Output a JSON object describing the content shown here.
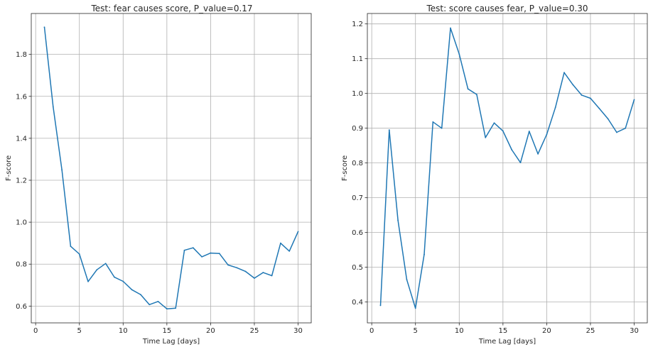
{
  "chart_data": [
    {
      "type": "line",
      "title": "Test: fear causes score, P_value=0.17",
      "xlabel": "Time Lag [days]",
      "ylabel": "F-score",
      "xlim": [
        -0.5,
        31.5
      ],
      "ylim": [
        0.52,
        1.995
      ],
      "xticks": [
        0,
        5,
        10,
        15,
        20,
        25,
        30
      ],
      "yticks": [
        0.6,
        0.8,
        1.0,
        1.2,
        1.4,
        1.6,
        1.8
      ],
      "ytick_labels": [
        "0.6",
        "0.8",
        "1.0",
        "1.2",
        "1.4",
        "1.6",
        "1.8"
      ],
      "grid": true,
      "line_color": "#1f77b4",
      "series": [
        {
          "x": [
            1,
            2,
            3,
            4,
            5,
            6,
            7,
            8,
            9,
            10,
            11,
            12,
            13,
            14,
            15,
            16,
            17,
            18,
            19,
            20,
            21,
            22,
            23,
            24,
            25,
            26,
            27,
            28,
            29,
            30
          ],
          "values": [
            1.93,
            1.55,
            1.25,
            0.885,
            0.848,
            0.717,
            0.773,
            0.803,
            0.738,
            0.718,
            0.678,
            0.655,
            0.607,
            0.622,
            0.587,
            0.59,
            0.866,
            0.878,
            0.835,
            0.853,
            0.851,
            0.796,
            0.783,
            0.765,
            0.733,
            0.76,
            0.745,
            0.9,
            0.862,
            0.955
          ]
        }
      ]
    },
    {
      "type": "line",
      "title": "Test: score causes fear, P_value=0.30",
      "xlabel": "Time Lag [days]",
      "ylabel": "F-score",
      "xlim": [
        -0.5,
        31.5
      ],
      "ylim": [
        0.34,
        1.23
      ],
      "xticks": [
        0,
        5,
        10,
        15,
        20,
        25,
        30
      ],
      "yticks": [
        0.4,
        0.5,
        0.6,
        0.7,
        0.8,
        0.9,
        1.0,
        1.1,
        1.2
      ],
      "ytick_labels": [
        "0.4",
        "0.5",
        "0.6",
        "0.7",
        "0.8",
        "0.9",
        "1.0",
        "1.1",
        "1.2"
      ],
      "grid": true,
      "line_color": "#1f77b4",
      "series": [
        {
          "x": [
            1,
            2,
            3,
            4,
            5,
            6,
            7,
            8,
            9,
            10,
            11,
            12,
            13,
            14,
            15,
            16,
            17,
            18,
            19,
            20,
            21,
            22,
            23,
            24,
            25,
            26,
            27,
            28,
            29,
            30
          ],
          "values": [
            0.39,
            0.895,
            0.635,
            0.465,
            0.382,
            0.537,
            0.918,
            0.9,
            1.188,
            1.113,
            1.013,
            0.997,
            0.873,
            0.915,
            0.892,
            0.838,
            0.801,
            0.891,
            0.826,
            0.882,
            0.96,
            1.06,
            1.025,
            0.995,
            0.986,
            0.957,
            0.927,
            0.888,
            0.9,
            0.982
          ]
        }
      ]
    }
  ]
}
